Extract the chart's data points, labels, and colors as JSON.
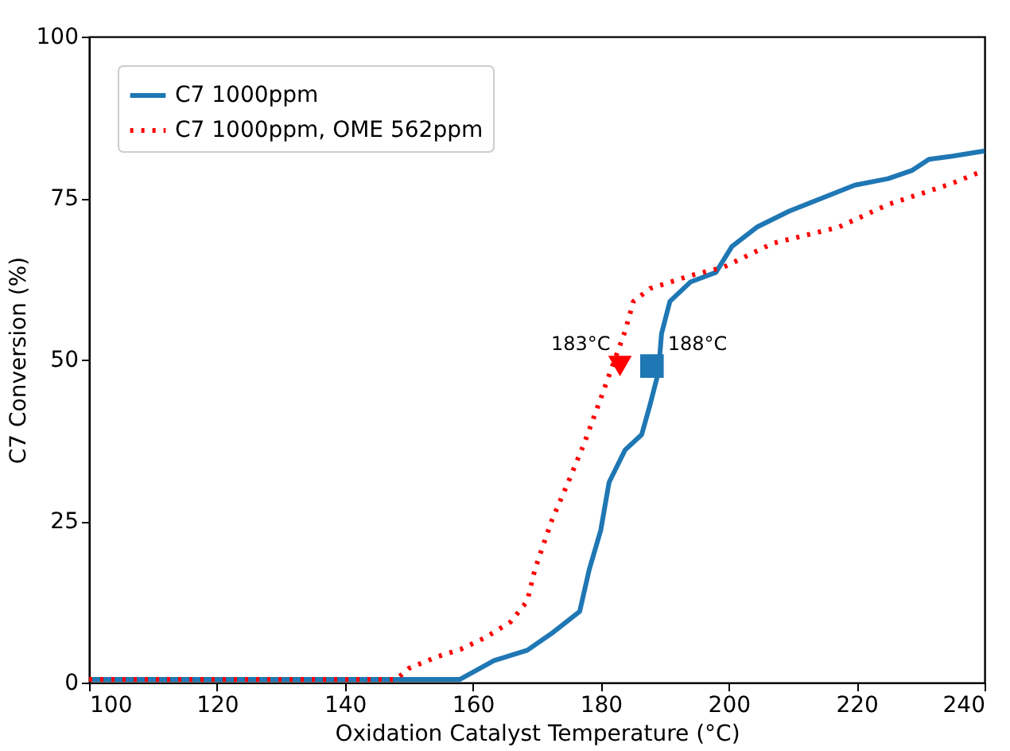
{
  "chart_data": {
    "type": "line",
    "xlabel": "Oxidation Catalyst Temperature (°C)",
    "ylabel": "C7 Conversion (%)",
    "xlim": [
      100,
      240
    ],
    "xticks": [
      100,
      120,
      140,
      160,
      180,
      200,
      220,
      240
    ],
    "ylim": [
      0,
      100
    ],
    "yticks": [
      0,
      25,
      50,
      75,
      100
    ],
    "grid": false,
    "legend": "top left",
    "series": [
      {
        "name": "C7 1000ppm",
        "color": "#1f77b4",
        "line_style": "solid",
        "x": [
          100,
          120,
          140,
          158,
          163.3,
          168.5,
          172.3,
          176.7,
          178.2,
          180,
          181.3,
          183.8,
          186.4,
          187.7,
          189,
          189.5,
          190.8,
          194,
          198,
          200.5,
          204.4,
          209.5,
          214.6,
          219.7,
          224.9,
          228.7,
          231.3,
          235,
          240
        ],
        "values": [
          0.5,
          0.5,
          0.5,
          0.5,
          3.4,
          5,
          7.6,
          11,
          17.5,
          23.6,
          31,
          36,
          38.4,
          43,
          48,
          54,
          59,
          62,
          63.5,
          67.5,
          70.5,
          73,
          75,
          77,
          78,
          79.3,
          81,
          81.5,
          82.3
        ]
      },
      {
        "name": "C7 1000ppm, OME 562ppm",
        "color": "#ff0000",
        "line_style": "dotted",
        "x": [
          100,
          120,
          140,
          148,
          150,
          154.4,
          158.2,
          162,
          165.9,
          168.5,
          169.7,
          172.3,
          174.9,
          177.4,
          180,
          182,
          183.8,
          185.1,
          187.7,
          194,
          199.2,
          206.9,
          217.2,
          224.9,
          235,
          240
        ],
        "values": [
          0.5,
          0.5,
          0.5,
          0.5,
          2.2,
          4,
          5.2,
          7,
          9.4,
          12.6,
          17.5,
          25,
          31,
          37,
          44,
          49.5,
          54.4,
          59,
          61,
          63,
          64.3,
          68,
          70.5,
          74,
          77.3,
          79.3
        ]
      },
      {
        "color": "#1f77b4",
        "type": "scatter",
        "marker": "square",
        "x": [
          188
        ],
        "values": [
          49
        ]
      },
      {
        "color": "#ff0000",
        "type": "scatter",
        "marker": "triangle",
        "x": [
          183
        ],
        "values": [
          49
        ]
      }
    ],
    "annotations": [
      {
        "text": "183°C",
        "x": 183,
        "y": 49
      },
      {
        "text": "188°C",
        "x": 188,
        "y": 49
      }
    ]
  }
}
